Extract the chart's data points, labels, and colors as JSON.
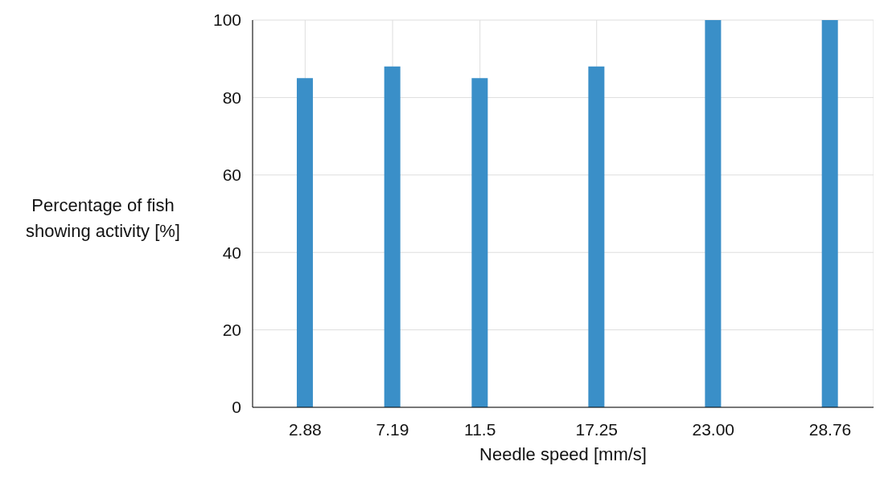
{
  "chart_data": {
    "type": "bar",
    "xlabel": "Needle speed [mm/s]",
    "ylabel": "Percentage of fish showing activity [%]",
    "x": [
      2.88,
      7.19,
      11.5,
      17.25,
      23.0,
      28.76
    ],
    "values": [
      85,
      88,
      85,
      88,
      100,
      100
    ],
    "color": "#3a8fc8",
    "xlim": [
      0.29,
      30.9
    ],
    "xticks": [
      2.88,
      7.19,
      11.5,
      17.25,
      {
        "value": 23,
        "label": "23.00"
      },
      28.76
    ],
    "ylim": [
      0,
      100
    ],
    "yticks": [
      0,
      20,
      40,
      60,
      80,
      100
    ],
    "grid": true
  }
}
